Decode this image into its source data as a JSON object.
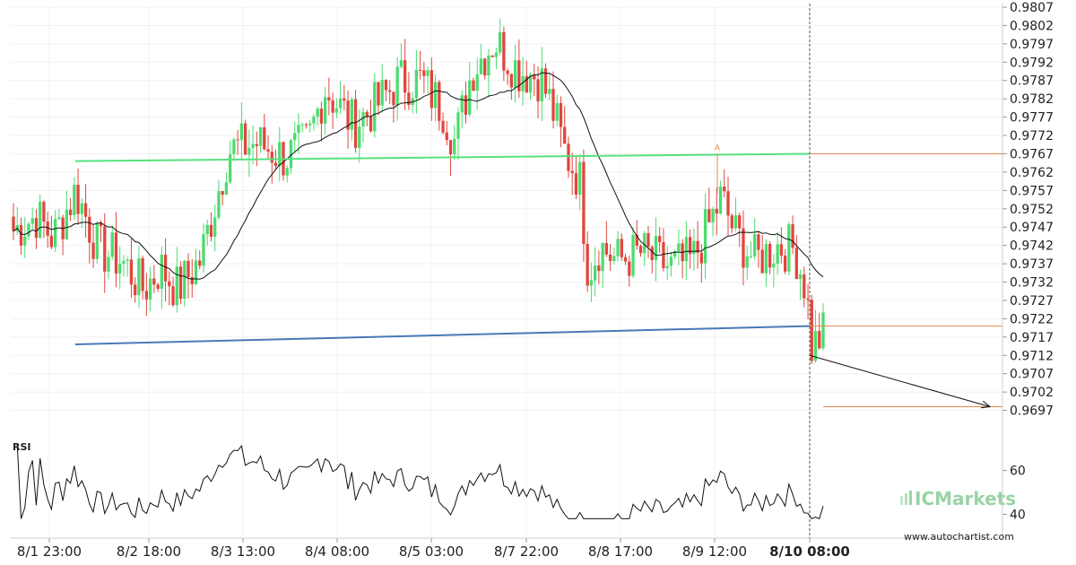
{
  "chart_data": {
    "type": "candlestick",
    "title": "",
    "price_axis": {
      "ylim": [
        0.9692,
        0.9807
      ],
      "ticks": [
        "0.9807",
        "0.9802",
        "0.9797",
        "0.9792",
        "0.9787",
        "0.9782",
        "0.9777",
        "0.9772",
        "0.9767",
        "0.9762",
        "0.9757",
        "0.9752",
        "0.9747",
        "0.9742",
        "0.9737",
        "0.9732",
        "0.9727",
        "0.9722",
        "0.9717",
        "0.9712",
        "0.9707",
        "0.9702",
        "0.9697"
      ]
    },
    "time_axis": {
      "labels": [
        "8/1 23:00",
        "8/2 18:00",
        "8/3 13:00",
        "8/4 08:00",
        "8/5 03:00",
        "8/7 22:00",
        "8/8 17:00",
        "8/9 12:00",
        "8/10 08:00"
      ],
      "highlighted_label": "8/10 08:00"
    },
    "rsi": {
      "title": "RSI",
      "ticks": [
        "60",
        "40"
      ],
      "ylim": [
        30,
        75
      ]
    },
    "pattern": {
      "resistance_line": {
        "start": 0.9765,
        "end": 0.9767,
        "color": "#55e27e"
      },
      "support_line": {
        "start": 0.9715,
        "end": 0.972,
        "color": "#4a78b8"
      },
      "breakout_level": 0.972,
      "resistance_level": 0.9767,
      "target_level": 0.9698,
      "marker_label": "A"
    },
    "colors": {
      "bull": "#4bdc6f",
      "bear": "#e0463d",
      "ma_line": "#111111",
      "level_line": "#e08a4e",
      "projection": "#111111"
    },
    "grid": true
  },
  "branding": {
    "broker": "ICMarkets",
    "website": "www.autochartist.com"
  }
}
